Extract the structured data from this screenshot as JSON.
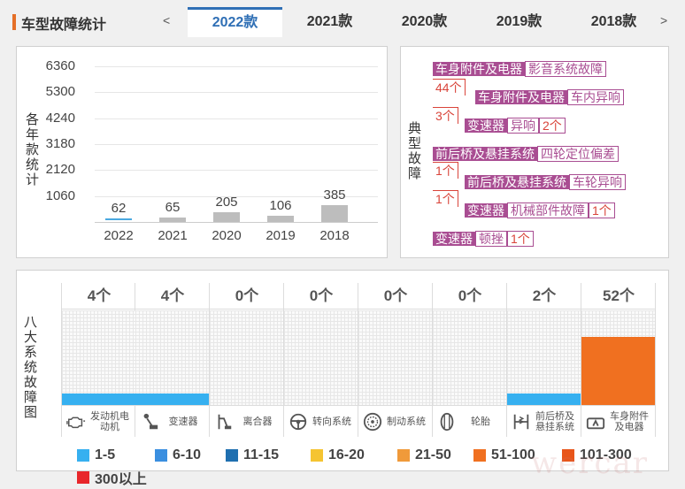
{
  "header": {
    "title": "车型故障统计",
    "prev": "<",
    "next": ">",
    "tabs": [
      "2022款",
      "2021款",
      "2020款",
      "2019款",
      "2018款"
    ],
    "active_tab": "2022款"
  },
  "count_chart": {
    "ylabel": "各年款统计",
    "chart_data": {
      "type": "bar",
      "categories": [
        "2022",
        "2021",
        "2020",
        "2019",
        "2018"
      ],
      "values": [
        62,
        65,
        205,
        106,
        385
      ],
      "yticks": [
        6360,
        5300,
        4240,
        3180,
        2120,
        1060
      ],
      "ylim": [
        0,
        6360
      ],
      "grid": true,
      "highlight_color": "#4aa8e0",
      "bar_color": "#bdbdbd"
    }
  },
  "typical": {
    "label": "典型故障",
    "items": [
      {
        "category": "车身附件及电器",
        "fault": "影音系统故障",
        "count": "44个"
      },
      {
        "category": "车身附件及电器",
        "fault": "车内异响",
        "count": "3个"
      },
      {
        "category": "变速器",
        "fault": "异响",
        "count": "2个"
      },
      {
        "category": "前后桥及悬挂系统",
        "fault": "四轮定位偏差",
        "count": "1个"
      },
      {
        "category": "前后桥及悬挂系统",
        "fault": "车轮异响",
        "count": "1个"
      },
      {
        "category": "变速器",
        "fault": "机械部件故障",
        "count": "1个"
      },
      {
        "category": "变速器",
        "fault": "顿挫",
        "count": "1个"
      }
    ],
    "category_color": "#a94d92",
    "count_color": "#d9443a"
  },
  "systems": {
    "label": "八大系统故障图",
    "items": [
      {
        "name": "发动机电动机",
        "count_label": "4个",
        "count": 4,
        "icon": "engine-icon",
        "fill_color": "#36b0f0"
      },
      {
        "name": "变速器",
        "count_label": "4个",
        "count": 4,
        "icon": "gear-shifter-icon",
        "fill_color": "#36b0f0"
      },
      {
        "name": "离合器",
        "count_label": "0个",
        "count": 0,
        "icon": "clutch-pedal-icon",
        "fill_color": "#36b0f0"
      },
      {
        "name": "转向系统",
        "count_label": "0个",
        "count": 0,
        "icon": "steering-wheel-icon",
        "fill_color": "#36b0f0"
      },
      {
        "name": "制动系统",
        "count_label": "0个",
        "count": 0,
        "icon": "brake-disc-icon",
        "fill_color": "#36b0f0"
      },
      {
        "name": "轮胎",
        "count_label": "0个",
        "count": 0,
        "icon": "tire-icon",
        "fill_color": "#36b0f0"
      },
      {
        "name": "前后桥及悬挂系统",
        "count_label": "2个",
        "count": 2,
        "icon": "suspension-icon",
        "fill_color": "#36b0f0"
      },
      {
        "name": "车身附件及电器",
        "count_label": "52个",
        "count": 52,
        "icon": "car-body-icon",
        "fill_color": "#f07020"
      }
    ],
    "legend": [
      {
        "label": "1-5",
        "color": "#36b0f0"
      },
      {
        "label": "6-10",
        "color": "#3a8fe0"
      },
      {
        "label": "11-15",
        "color": "#1f6fb0"
      },
      {
        "label": "16-20",
        "color": "#f5c431"
      },
      {
        "label": "21-50",
        "color": "#f09a3a"
      },
      {
        "label": "51-100",
        "color": "#f07020"
      },
      {
        "label": "101-300",
        "color": "#e8551a"
      },
      {
        "label": "300以上",
        "color": "#e8262a"
      }
    ]
  }
}
